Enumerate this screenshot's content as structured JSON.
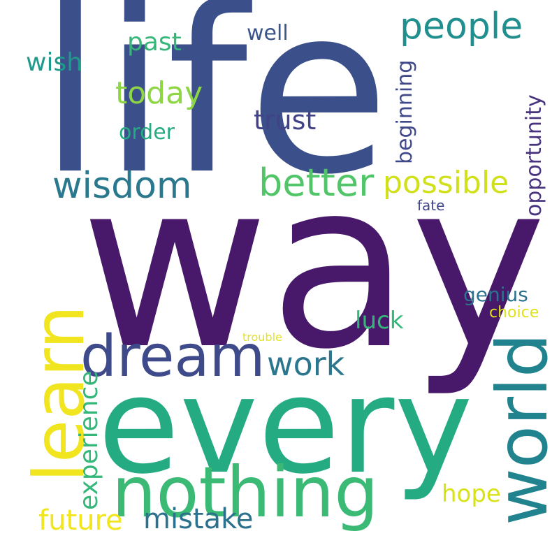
{
  "words": {
    "life": {
      "text": "life",
      "color": "#3b4f8a"
    },
    "way": {
      "text": "way",
      "color": "#48186a"
    },
    "every": {
      "text": "every",
      "color": "#25ab82"
    },
    "nothing": {
      "text": "nothing",
      "color": "#3bba75"
    },
    "dream": {
      "text": "dream",
      "color": "#3e4a89"
    },
    "learn": {
      "text": "learn",
      "color": "#f0e51e"
    },
    "world": {
      "text": "world",
      "color": "#21838e"
    },
    "people": {
      "text": "people",
      "color": "#218f8d"
    },
    "today": {
      "text": "today",
      "color": "#8ed645"
    },
    "wisdom": {
      "text": "wisdom",
      "color": "#2a788e"
    },
    "better": {
      "text": "better",
      "color": "#52c569"
    },
    "possible": {
      "text": "possible",
      "color": "#d0e11c"
    },
    "trust": {
      "text": "trust",
      "color": "#414287"
    },
    "work": {
      "text": "work",
      "color": "#2a768e"
    },
    "luck": {
      "text": "luck",
      "color": "#35b779"
    },
    "genius": {
      "text": "genius",
      "color": "#2c728e"
    },
    "choice": {
      "text": "choice",
      "color": "#dde318"
    },
    "trouble": {
      "text": "trouble",
      "color": "#e5e419"
    },
    "fate": {
      "text": "fate",
      "color": "#404688"
    },
    "past": {
      "text": "past",
      "color": "#35b779"
    },
    "well": {
      "text": "well",
      "color": "#3a548c"
    },
    "wish": {
      "text": "wish",
      "color": "#1f998a"
    },
    "order": {
      "text": "order",
      "color": "#25ab82"
    },
    "future": {
      "text": "future",
      "color": "#f1e51d"
    },
    "mistake": {
      "text": "mistake",
      "color": "#2c728e"
    },
    "hope": {
      "text": "hope",
      "color": "#d8e219"
    },
    "experience": {
      "text": "experience",
      "color": "#35b779"
    },
    "beginning": {
      "text": "beginning",
      "color": "#3f4889"
    },
    "opportunity": {
      "text": "opportunity",
      "color": "#46327e"
    }
  }
}
